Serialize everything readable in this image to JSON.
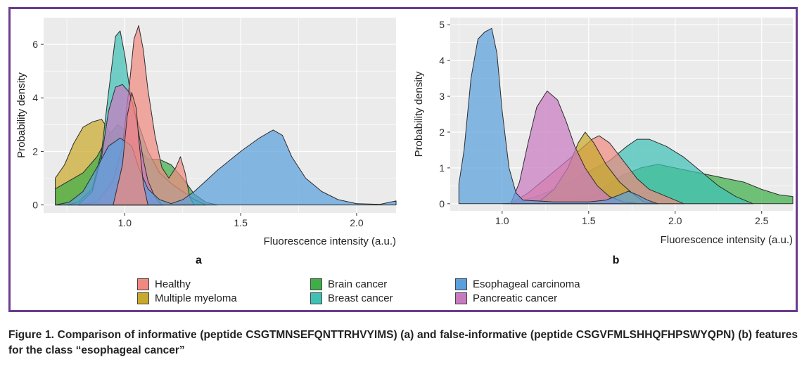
{
  "caption": "Figure 1. Comparison of informative (peptide CSGTMNSEFQNTTRHVYIMS) (a) and false-informative (peptide CSGVFMLSHHQFHPSWYQPN) (b) features for the class “esophageal cancer”",
  "legend": [
    {
      "name": "Healthy",
      "color": "#f08a80"
    },
    {
      "name": "Brain cancer",
      "color": "#3fae49"
    },
    {
      "name": "Esophageal carcinoma",
      "color": "#5aa0dc"
    },
    {
      "name": "Multiple myeloma",
      "color": "#c9a92c"
    },
    {
      "name": "Breast cancer",
      "color": "#3fc1b5"
    },
    {
      "name": "Pancreatic cancer",
      "color": "#c87ac0"
    }
  ],
  "chart_data": [
    {
      "type": "area",
      "panel_label": "a",
      "xlabel": "Fluorescence intensity (a.u.)",
      "ylabel": "Probability density",
      "xlim": [
        0.65,
        2.17
      ],
      "ylim": [
        -0.3,
        7.0
      ],
      "x_ticks": [
        1.0,
        1.5,
        2.0
      ],
      "x_tick_labels": [
        "1.0",
        "1.5",
        "2.0"
      ],
      "y_ticks": [
        0,
        2,
        4,
        6
      ],
      "y_tick_labels": [
        "0",
        "2",
        "4",
        "6"
      ],
      "grid": true,
      "series": [
        {
          "name": "Multiple myeloma",
          "color": "#c9a92c",
          "points": [
            [
              0.7,
              0
            ],
            [
              0.7,
              1.0
            ],
            [
              0.74,
              1.5
            ],
            [
              0.78,
              2.3
            ],
            [
              0.82,
              2.9
            ],
            [
              0.86,
              3.1
            ],
            [
              0.9,
              3.2
            ],
            [
              0.93,
              2.8
            ],
            [
              0.96,
              2.0
            ],
            [
              1.0,
              1.2
            ],
            [
              1.04,
              0.6
            ],
            [
              1.08,
              0.3
            ],
            [
              1.12,
              0.1
            ],
            [
              1.17,
              0
            ]
          ]
        },
        {
          "name": "Brain cancer",
          "color": "#3fae49",
          "points": [
            [
              0.7,
              0
            ],
            [
              0.7,
              0.6
            ],
            [
              0.76,
              0.9
            ],
            [
              0.82,
              1.2
            ],
            [
              0.88,
              1.8
            ],
            [
              0.93,
              2.6
            ],
            [
              0.97,
              3.0
            ],
            [
              1.0,
              2.8
            ],
            [
              1.05,
              2.2
            ],
            [
              1.1,
              1.7
            ],
            [
              1.15,
              1.7
            ],
            [
              1.2,
              1.5
            ],
            [
              1.25,
              1.0
            ],
            [
              1.3,
              0.4
            ],
            [
              1.35,
              0.1
            ],
            [
              1.4,
              0
            ]
          ]
        },
        {
          "name": "Breast cancer",
          "color": "#3fc1b5",
          "points": [
            [
              0.75,
              0
            ],
            [
              0.8,
              0.1
            ],
            [
              0.86,
              0.6
            ],
            [
              0.9,
              2.0
            ],
            [
              0.93,
              4.2
            ],
            [
              0.96,
              6.3
            ],
            [
              0.98,
              6.5
            ],
            [
              1.0,
              5.6
            ],
            [
              1.03,
              3.8
            ],
            [
              1.06,
              3.0
            ],
            [
              1.1,
              2.0
            ],
            [
              1.15,
              1.2
            ],
            [
              1.2,
              0.8
            ],
            [
              1.25,
              0.5
            ],
            [
              1.3,
              0.2
            ],
            [
              1.35,
              0
            ]
          ]
        },
        {
          "name": "Healthy",
          "color": "#f08a80",
          "points": [
            [
              0.8,
              0
            ],
            [
              0.88,
              0.1
            ],
            [
              0.95,
              0.9
            ],
            [
              0.99,
              2.2
            ],
            [
              1.02,
              4.5
            ],
            [
              1.04,
              6.2
            ],
            [
              1.06,
              6.7
            ],
            [
              1.08,
              5.8
            ],
            [
              1.1,
              4.3
            ],
            [
              1.13,
              2.6
            ],
            [
              1.16,
              1.4
            ],
            [
              1.19,
              1.0
            ],
            [
              1.22,
              1.4
            ],
            [
              1.24,
              1.8
            ],
            [
              1.26,
              1.2
            ],
            [
              1.28,
              0.3
            ],
            [
              1.3,
              0
            ]
          ]
        },
        {
          "name": "Pancreatic cancer",
          "color": "#c87ac0",
          "points": [
            [
              0.8,
              0
            ],
            [
              0.86,
              0.5
            ],
            [
              0.9,
              1.8
            ],
            [
              0.93,
              3.5
            ],
            [
              0.96,
              4.4
            ],
            [
              0.99,
              4.5
            ],
            [
              1.02,
              4.2
            ],
            [
              1.04,
              3.6
            ],
            [
              1.06,
              2.7
            ],
            [
              1.08,
              1.7
            ],
            [
              1.1,
              0.9
            ],
            [
              1.13,
              0.3
            ],
            [
              1.16,
              0
            ]
          ]
        },
        {
          "name": "Esophageal carcinoma",
          "color": "#5aa0dc",
          "points": [
            [
              0.7,
              0
            ],
            [
              0.76,
              0.1
            ],
            [
              0.82,
              0.5
            ],
            [
              0.88,
              1.4
            ],
            [
              0.93,
              2.2
            ],
            [
              0.98,
              2.5
            ],
            [
              1.03,
              2.2
            ],
            [
              1.06,
              1.4
            ],
            [
              1.1,
              0.6
            ],
            [
              1.15,
              0.2
            ],
            [
              1.2,
              0.05
            ],
            [
              1.25,
              0.2
            ],
            [
              1.3,
              0.5
            ],
            [
              1.4,
              1.3
            ],
            [
              1.5,
              2.0
            ],
            [
              1.58,
              2.5
            ],
            [
              1.64,
              2.8
            ],
            [
              1.68,
              2.6
            ],
            [
              1.72,
              1.8
            ],
            [
              1.78,
              1.0
            ],
            [
              1.85,
              0.5
            ],
            [
              1.92,
              0.2
            ],
            [
              2.0,
              0.05
            ],
            [
              2.1,
              0.02
            ],
            [
              2.17,
              0.15
            ],
            [
              2.17,
              0
            ]
          ]
        },
        {
          "name": "Healthy",
          "color": "#f08a80",
          "points": [
            [
              0.95,
              0
            ],
            [
              0.99,
              1.5
            ],
            [
              1.01,
              3.3
            ],
            [
              1.03,
              4.2
            ],
            [
              1.05,
              3.6
            ],
            [
              1.06,
              2.5
            ],
            [
              1.08,
              0.8
            ],
            [
              1.1,
              0
            ]
          ]
        }
      ]
    },
    {
      "type": "area",
      "panel_label": "b",
      "xlabel": "Fluorescence intensity (a.u.)",
      "ylabel": "Probability density",
      "xlim": [
        0.7,
        2.68
      ],
      "ylim": [
        -0.2,
        5.2
      ],
      "x_ticks": [
        1.0,
        1.5,
        2.0,
        2.5
      ],
      "x_tick_labels": [
        "1.0",
        "1.5",
        "2.0",
        "2.5"
      ],
      "y_ticks": [
        0,
        1,
        2,
        3,
        4,
        5
      ],
      "y_tick_labels": [
        "0",
        "1",
        "2",
        "3",
        "4",
        "5"
      ],
      "grid": true,
      "series": [
        {
          "name": "Brain cancer",
          "color": "#3fae49",
          "points": [
            [
              1.0,
              0
            ],
            [
              1.2,
              0.05
            ],
            [
              1.4,
              0.2
            ],
            [
              1.55,
              0.3
            ],
            [
              1.6,
              0.5
            ],
            [
              1.7,
              0.8
            ],
            [
              1.8,
              1.0
            ],
            [
              1.9,
              1.1
            ],
            [
              2.0,
              1.0
            ],
            [
              2.1,
              0.9
            ],
            [
              2.2,
              0.8
            ],
            [
              2.3,
              0.7
            ],
            [
              2.4,
              0.6
            ],
            [
              2.5,
              0.4
            ],
            [
              2.6,
              0.25
            ],
            [
              2.68,
              0.2
            ],
            [
              2.68,
              0
            ]
          ]
        },
        {
          "name": "Breast cancer",
          "color": "#3fc1b5",
          "points": [
            [
              1.05,
              0
            ],
            [
              1.2,
              0.2
            ],
            [
              1.35,
              0.5
            ],
            [
              1.5,
              0.9
            ],
            [
              1.62,
              1.2
            ],
            [
              1.72,
              1.6
            ],
            [
              1.78,
              1.8
            ],
            [
              1.85,
              1.8
            ],
            [
              1.95,
              1.6
            ],
            [
              2.05,
              1.3
            ],
            [
              2.15,
              0.9
            ],
            [
              2.25,
              0.5
            ],
            [
              2.35,
              0.2
            ],
            [
              2.45,
              0
            ]
          ]
        },
        {
          "name": "Healthy",
          "color": "#f08a80",
          "points": [
            [
              1.05,
              0
            ],
            [
              1.15,
              0.3
            ],
            [
              1.25,
              0.7
            ],
            [
              1.35,
              1.1
            ],
            [
              1.45,
              1.5
            ],
            [
              1.52,
              1.8
            ],
            [
              1.56,
              1.9
            ],
            [
              1.62,
              1.7
            ],
            [
              1.7,
              1.2
            ],
            [
              1.78,
              0.7
            ],
            [
              1.85,
              0.4
            ],
            [
              1.95,
              0.2
            ],
            [
              2.05,
              0
            ]
          ]
        },
        {
          "name": "Multiple myeloma",
          "color": "#c9a92c",
          "points": [
            [
              1.2,
              0
            ],
            [
              1.3,
              0.4
            ],
            [
              1.38,
              1.0
            ],
            [
              1.44,
              1.7
            ],
            [
              1.48,
              2.0
            ],
            [
              1.53,
              1.7
            ],
            [
              1.6,
              1.1
            ],
            [
              1.68,
              0.6
            ],
            [
              1.75,
              0.3
            ],
            [
              1.82,
              0.05
            ],
            [
              1.9,
              0
            ]
          ]
        },
        {
          "name": "Pancreatic cancer",
          "color": "#c87ac0",
          "points": [
            [
              1.05,
              0
            ],
            [
              1.1,
              0.6
            ],
            [
              1.15,
              1.7
            ],
            [
              1.2,
              2.7
            ],
            [
              1.26,
              3.15
            ],
            [
              1.32,
              2.9
            ],
            [
              1.37,
              2.3
            ],
            [
              1.42,
              1.6
            ],
            [
              1.48,
              1.0
            ],
            [
              1.55,
              0.5
            ],
            [
              1.62,
              0.2
            ],
            [
              1.7,
              0.05
            ],
            [
              1.8,
              0
            ]
          ]
        },
        {
          "name": "Esophageal carcinoma",
          "color": "#5aa0dc",
          "points": [
            [
              0.75,
              0
            ],
            [
              0.75,
              0.55
            ],
            [
              0.78,
              1.5
            ],
            [
              0.82,
              3.5
            ],
            [
              0.86,
              4.6
            ],
            [
              0.9,
              4.8
            ],
            [
              0.94,
              4.9
            ],
            [
              0.97,
              4.2
            ],
            [
              1.0,
              2.6
            ],
            [
              1.04,
              1.0
            ],
            [
              1.08,
              0.3
            ],
            [
              1.12,
              0.1
            ],
            [
              1.3,
              0.05
            ],
            [
              1.5,
              0.05
            ],
            [
              1.6,
              0.1
            ],
            [
              1.68,
              0.25
            ],
            [
              1.73,
              0.35
            ],
            [
              1.78,
              0.25
            ],
            [
              1.84,
              0.1
            ],
            [
              1.9,
              0
            ]
          ]
        }
      ]
    }
  ]
}
